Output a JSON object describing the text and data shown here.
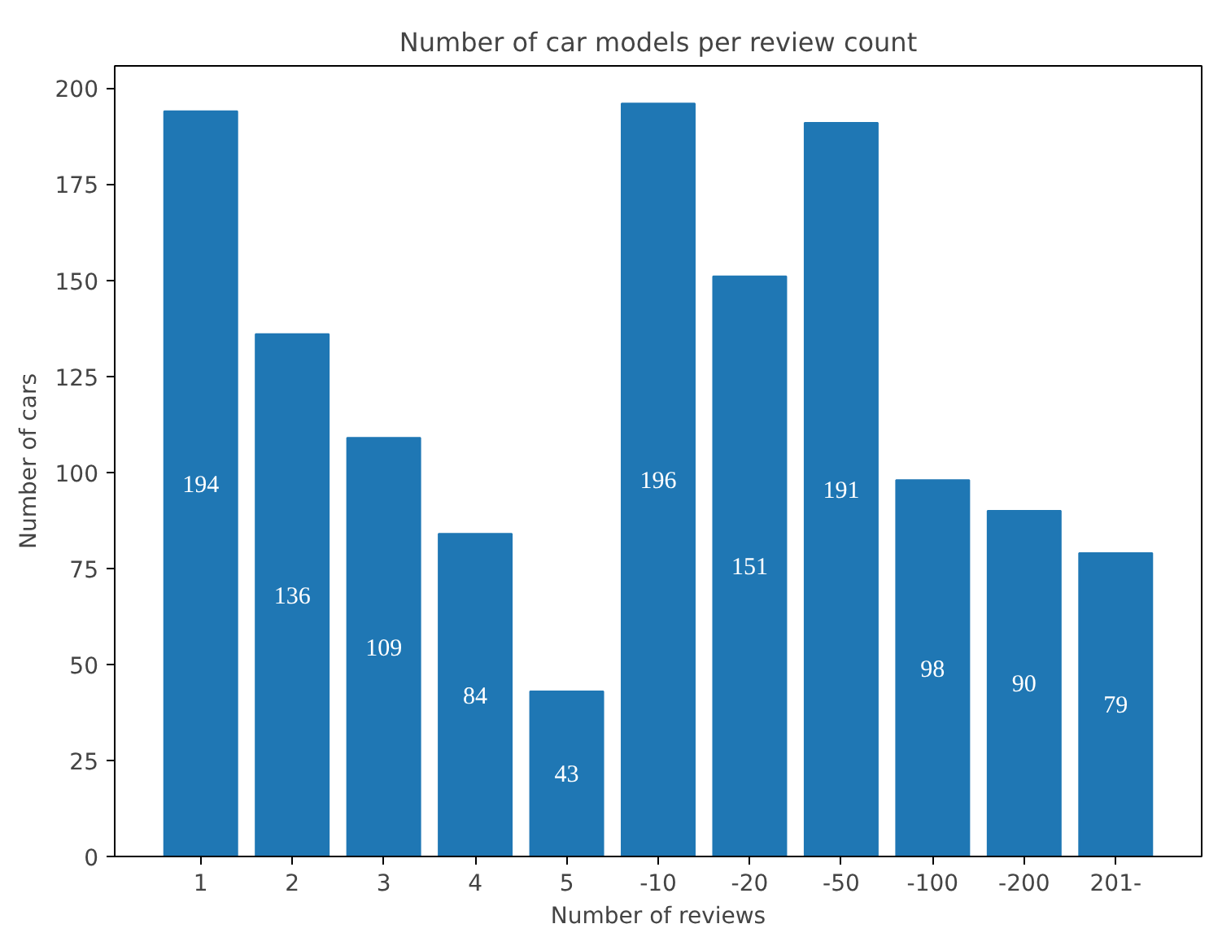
{
  "chart_data": {
    "type": "bar",
    "title": "Number of car models per review count",
    "xlabel": "Number of reviews",
    "ylabel": "Number of cars",
    "categories": [
      "1",
      "2",
      "3",
      "4",
      "5",
      "-10",
      "-20",
      "-50",
      "-100",
      "-200",
      "201-"
    ],
    "values": [
      194,
      136,
      109,
      84,
      43,
      196,
      151,
      191,
      98,
      90,
      79
    ],
    "color": "#1f77b4",
    "ylim": [
      0,
      205.8
    ],
    "yticks": [
      0,
      25,
      50,
      75,
      100,
      125,
      150,
      175,
      200
    ],
    "grid": false,
    "data_labels": true
  }
}
